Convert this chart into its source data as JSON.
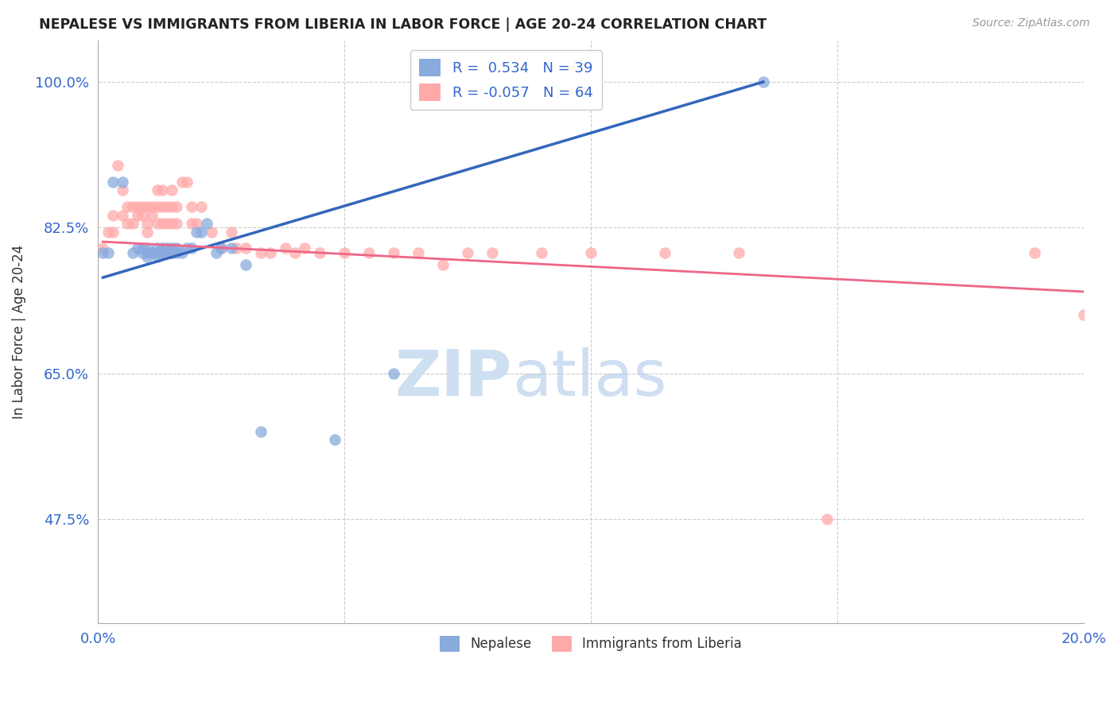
{
  "title": "NEPALESE VS IMMIGRANTS FROM LIBERIA IN LABOR FORCE | AGE 20-24 CORRELATION CHART",
  "source": "Source: ZipAtlas.com",
  "ylabel": "In Labor Force | Age 20-24",
  "xlim": [
    0.0,
    0.2
  ],
  "ylim": [
    0.35,
    1.05
  ],
  "xticks": [
    0.0,
    0.05,
    0.1,
    0.15,
    0.2
  ],
  "xticklabels": [
    "0.0%",
    "",
    "",
    "",
    "20.0%"
  ],
  "yticks": [
    0.475,
    0.65,
    0.825,
    1.0
  ],
  "yticklabels": [
    "47.5%",
    "65.0%",
    "82.5%",
    "100.0%"
  ],
  "blue_R": 0.534,
  "blue_N": 39,
  "pink_R": -0.057,
  "pink_N": 64,
  "blue_color": "#88AADD",
  "pink_color": "#FFAAAA",
  "blue_line_color": "#3366BB",
  "pink_line_color": "#EE6688",
  "watermark_zip": "ZIP",
  "watermark_atlas": "atlas",
  "legend_label_blue": "Nepalese",
  "legend_label_pink": "Immigrants from Liberia",
  "blue_points_x": [
    0.001,
    0.002,
    0.003,
    0.005,
    0.007,
    0.008,
    0.009,
    0.009,
    0.01,
    0.01,
    0.01,
    0.011,
    0.011,
    0.012,
    0.012,
    0.012,
    0.013,
    0.013,
    0.014,
    0.014,
    0.015,
    0.015,
    0.015,
    0.016,
    0.016,
    0.017,
    0.018,
    0.019,
    0.02,
    0.021,
    0.022,
    0.024,
    0.025,
    0.027,
    0.03,
    0.033,
    0.048,
    0.06,
    0.135
  ],
  "blue_points_y": [
    0.795,
    0.795,
    0.88,
    0.88,
    0.795,
    0.8,
    0.795,
    0.8,
    0.795,
    0.79,
    0.8,
    0.795,
    0.795,
    0.79,
    0.795,
    0.8,
    0.795,
    0.8,
    0.795,
    0.8,
    0.795,
    0.795,
    0.8,
    0.795,
    0.8,
    0.795,
    0.8,
    0.8,
    0.82,
    0.82,
    0.83,
    0.795,
    0.8,
    0.8,
    0.78,
    0.58,
    0.57,
    0.65,
    1.0
  ],
  "pink_points_x": [
    0.001,
    0.002,
    0.003,
    0.003,
    0.004,
    0.005,
    0.005,
    0.006,
    0.006,
    0.007,
    0.007,
    0.008,
    0.008,
    0.009,
    0.009,
    0.01,
    0.01,
    0.01,
    0.011,
    0.011,
    0.012,
    0.012,
    0.012,
    0.013,
    0.013,
    0.013,
    0.014,
    0.014,
    0.015,
    0.015,
    0.015,
    0.016,
    0.016,
    0.017,
    0.018,
    0.019,
    0.019,
    0.02,
    0.021,
    0.023,
    0.025,
    0.027,
    0.028,
    0.03,
    0.033,
    0.035,
    0.038,
    0.04,
    0.042,
    0.045,
    0.05,
    0.055,
    0.06,
    0.065,
    0.07,
    0.075,
    0.08,
    0.09,
    0.1,
    0.115,
    0.13,
    0.148,
    0.19,
    0.2
  ],
  "pink_points_y": [
    0.8,
    0.82,
    0.84,
    0.82,
    0.9,
    0.87,
    0.84,
    0.85,
    0.83,
    0.85,
    0.83,
    0.85,
    0.84,
    0.85,
    0.84,
    0.85,
    0.83,
    0.82,
    0.85,
    0.84,
    0.87,
    0.85,
    0.83,
    0.87,
    0.85,
    0.83,
    0.85,
    0.83,
    0.85,
    0.87,
    0.83,
    0.85,
    0.83,
    0.88,
    0.88,
    0.85,
    0.83,
    0.83,
    0.85,
    0.82,
    0.8,
    0.82,
    0.8,
    0.8,
    0.795,
    0.795,
    0.8,
    0.795,
    0.8,
    0.795,
    0.795,
    0.795,
    0.795,
    0.795,
    0.78,
    0.795,
    0.795,
    0.795,
    0.795,
    0.795,
    0.795,
    0.475,
    0.795,
    0.72
  ],
  "blue_trendline_x": [
    0.001,
    0.135
  ],
  "blue_trendline_y": [
    0.765,
    1.0
  ],
  "pink_trendline_x": [
    0.001,
    0.2
  ],
  "pink_trendline_y": [
    0.808,
    0.748
  ]
}
